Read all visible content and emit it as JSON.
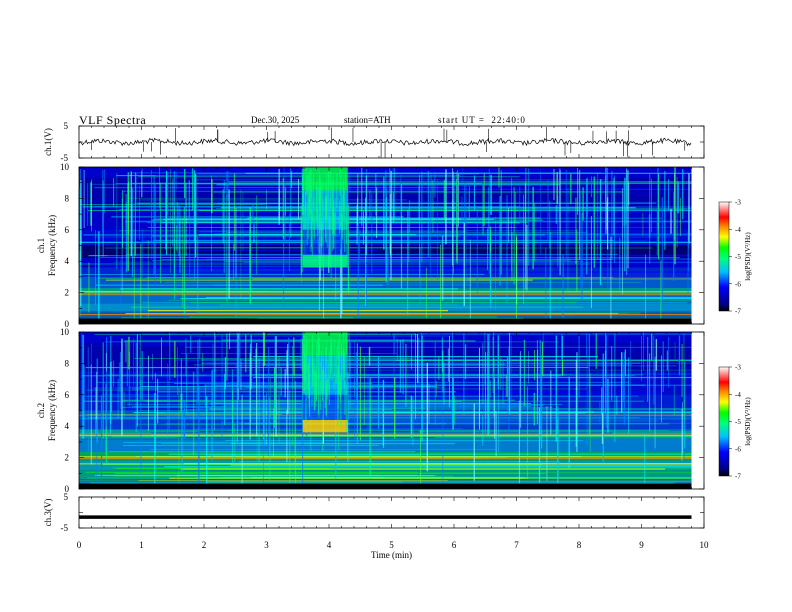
{
  "header": {
    "title": "VLF Spectra",
    "date": "Dec.30, 2025",
    "station": "station=ATH",
    "start_ut": "start UT =  22:40:0"
  },
  "colormap": [
    "#8b008b",
    "#000080",
    "#0000ff",
    "#0080ff",
    "#00ffff",
    "#00ff80",
    "#00ff00",
    "#ffff00",
    "#ff8000",
    "#ff0000",
    "#ffe0e0"
  ],
  "chart_data": [
    {
      "type": "line",
      "id": "ch1",
      "ylabel": "ch.1(V)",
      "ylim": [
        -5,
        5
      ],
      "yticks": [
        "5",
        "-5"
      ],
      "xlim": [
        0,
        10
      ],
      "series": [
        {
          "x": [
            0,
            9.8
          ],
          "y": [
            0,
            0
          ]
        }
      ]
    },
    {
      "type": "heatmap",
      "id": "ch1-spec",
      "ylabel": "ch.1 Frequency (kHz)",
      "ylabel_top": "ch.1",
      "ylabel_main": "Frequency (kHz)",
      "ylim": [
        0,
        10
      ],
      "yticks": [
        "0",
        "2",
        "4",
        "6",
        "8",
        "10"
      ],
      "xlim": [
        0,
        10
      ],
      "data_extent_x": [
        0,
        9.8
      ],
      "burst": {
        "x": [
          3.58,
          4.3
        ],
        "f": [
          3.5,
          10
        ]
      },
      "colorbar": {
        "label": "log(PSD)(V²/Hz)",
        "range": [
          -7,
          -3
        ],
        "ticks": [
          "-3",
          "-4",
          "-5",
          "-6",
          "-7"
        ]
      }
    },
    {
      "type": "heatmap",
      "id": "ch2-spec",
      "ylabel": "ch.2 Frequency (kHz)",
      "ylabel_top": "ch.2",
      "ylabel_main": "Frequency (kHz)",
      "ylim": [
        0,
        10
      ],
      "yticks": [
        "0",
        "2",
        "4",
        "6",
        "8",
        "10"
      ],
      "xlim": [
        0,
        10
      ],
      "data_extent_x": [
        0,
        9.8
      ],
      "burst": {
        "x": [
          3.58,
          4.3
        ],
        "f": [
          3.5,
          10
        ]
      },
      "colorbar": {
        "label": "log(PSD)(V²/Hz)",
        "range": [
          -7,
          -3
        ],
        "ticks": [
          "-3",
          "-4",
          "-5",
          "-6",
          "-7"
        ]
      }
    },
    {
      "type": "line",
      "id": "ch3",
      "ylabel": "ch.3(V)",
      "ylim": [
        -5,
        5
      ],
      "yticks": [
        "5",
        "-5"
      ],
      "xlim": [
        0,
        10
      ],
      "xlabel": "Time (min)",
      "xticks": [
        "0",
        "1",
        "2",
        "3",
        "4",
        "5",
        "6",
        "7",
        "8",
        "9",
        "10"
      ],
      "series": [
        {
          "x": [
            0,
            9.8
          ],
          "y": [
            -1.5,
            -1.5
          ]
        }
      ]
    }
  ]
}
